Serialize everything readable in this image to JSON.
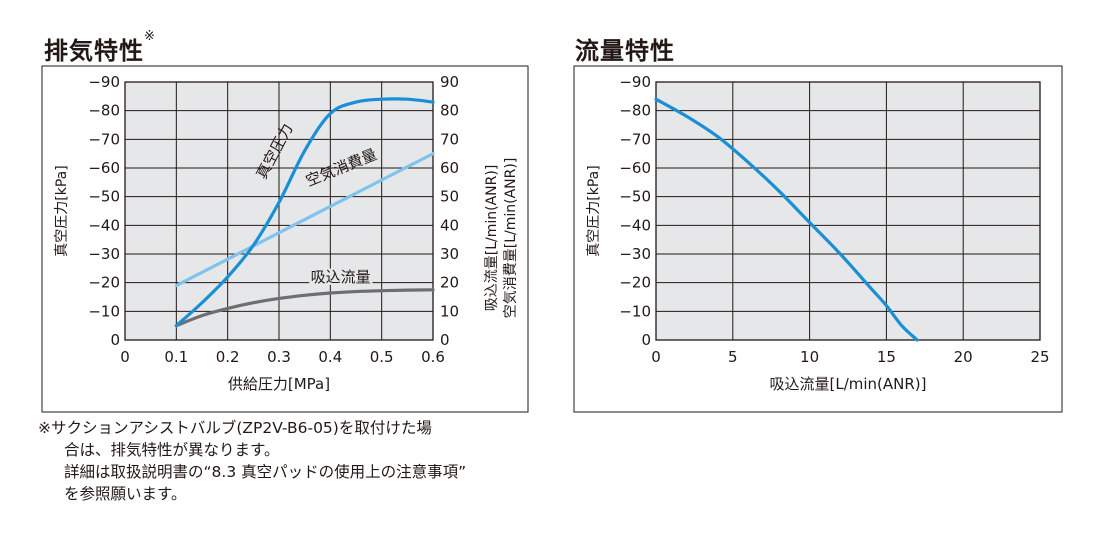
{
  "chart_data": [
    {
      "type": "line",
      "title": "排気特性",
      "title_mark": "※",
      "xlabel": "供給圧力[MPa]",
      "ylabel_left": "真空圧力[kPa]",
      "ylabel_right_1": "吸込流量[L/min(ANR)]",
      "ylabel_right_2": "空気消費量[L/min(ANR)]",
      "xlim": [
        0,
        0.6
      ],
      "ylim": [
        0,
        90
      ],
      "x_ticks": [
        "0",
        "0.1",
        "0.2",
        "0.3",
        "0.4",
        "0.5",
        "0.6"
      ],
      "y_ticks_left": [
        "0",
        "−10",
        "−20",
        "−30",
        "−40",
        "−50",
        "−60",
        "−70",
        "−80",
        "−90"
      ],
      "y_ticks_right": [
        "0",
        "10",
        "20",
        "30",
        "40",
        "50",
        "60",
        "70",
        "80",
        "90"
      ],
      "grid": true,
      "series": [
        {
          "name": "真空圧力",
          "color": "#1a8fd6",
          "points": [
            [
              0.1,
              5
            ],
            [
              0.15,
              13
            ],
            [
              0.2,
              22
            ],
            [
              0.25,
              33
            ],
            [
              0.3,
              48
            ],
            [
              0.35,
              66
            ],
            [
              0.4,
              79
            ],
            [
              0.45,
              83
            ],
            [
              0.5,
              84
            ],
            [
              0.55,
              84
            ],
            [
              0.6,
              83
            ]
          ]
        },
        {
          "name": "空気消費量",
          "color": "#7fc3ee",
          "points": [
            [
              0.1,
              19
            ],
            [
              0.6,
              65
            ]
          ]
        },
        {
          "name": "吸込流量",
          "color": "#6d6e71",
          "points": [
            [
              0.1,
              5
            ],
            [
              0.15,
              8.5
            ],
            [
              0.2,
              11
            ],
            [
              0.25,
              13
            ],
            [
              0.3,
              14.5
            ],
            [
              0.35,
              15.6
            ],
            [
              0.4,
              16.4
            ],
            [
              0.45,
              16.9
            ],
            [
              0.5,
              17.2
            ],
            [
              0.55,
              17.4
            ],
            [
              0.6,
              17.5
            ]
          ]
        }
      ]
    },
    {
      "type": "line",
      "title": "流量特性",
      "xlabel": "吸込流量[L/min(ANR)]",
      "ylabel_left": "真空圧力[kPa]",
      "xlim": [
        0,
        25
      ],
      "ylim": [
        0,
        90
      ],
      "x_ticks": [
        "0",
        "5",
        "10",
        "15",
        "20",
        "25"
      ],
      "y_ticks_left": [
        "0",
        "−10",
        "−20",
        "−30",
        "−40",
        "−50",
        "−60",
        "−70",
        "−80",
        "−90"
      ],
      "grid": true,
      "series": [
        {
          "color": "#1a8fd6",
          "points": [
            [
              0,
              84
            ],
            [
              2,
              78
            ],
            [
              4,
              71
            ],
            [
              6,
              62
            ],
            [
              8,
              52
            ],
            [
              10,
              41
            ],
            [
              12,
              30
            ],
            [
              14,
              18
            ],
            [
              15,
              12
            ],
            [
              16,
              5
            ],
            [
              17,
              0
            ]
          ]
        }
      ]
    }
  ],
  "note": {
    "lines": [
      "※サクションアシストバルブ(ZP2V-B6-05)を取付けた場",
      "合は、排気特性が異なります。",
      "詳細は取扱説明書の“8.3 真空パッドの使用上の注意事項”",
      "を参照願います。"
    ]
  }
}
